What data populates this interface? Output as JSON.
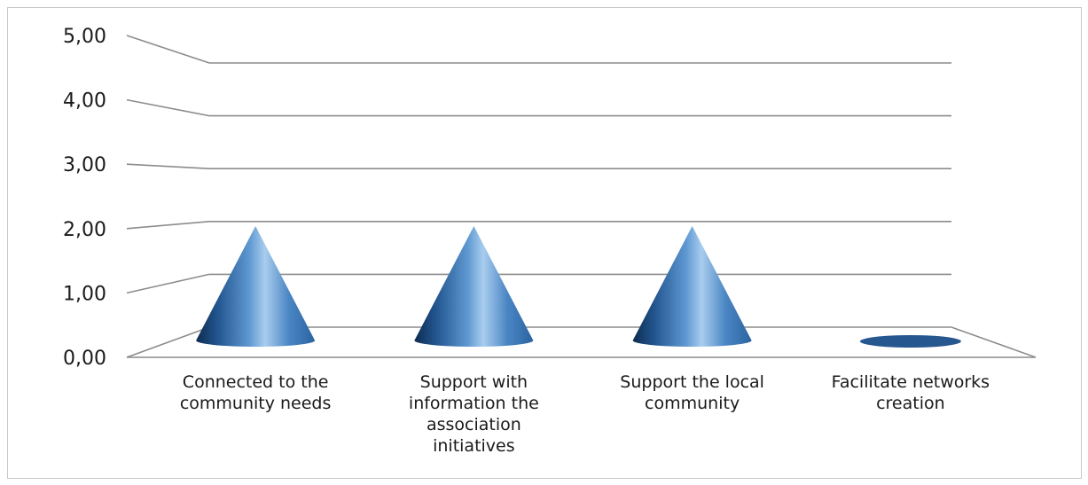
{
  "chart_data": {
    "type": "bar",
    "shape": "cone",
    "categories": [
      "Connected to the community needs",
      "Support with information the association initiatives",
      "Support the local community",
      "Facilitate networks creation"
    ],
    "values": [
      2,
      2,
      2,
      0
    ],
    "ylim": [
      0,
      5
    ],
    "yticks": [
      "0,00",
      "1,00",
      "2,00",
      "3,00",
      "4,00",
      "5,00"
    ],
    "grid": true,
    "colors": {
      "cone_dark": "#0d2c4f",
      "cone_mid": "#3d79b8",
      "cone_light": "#a9cdee",
      "grid": "#8c8c8c"
    }
  }
}
